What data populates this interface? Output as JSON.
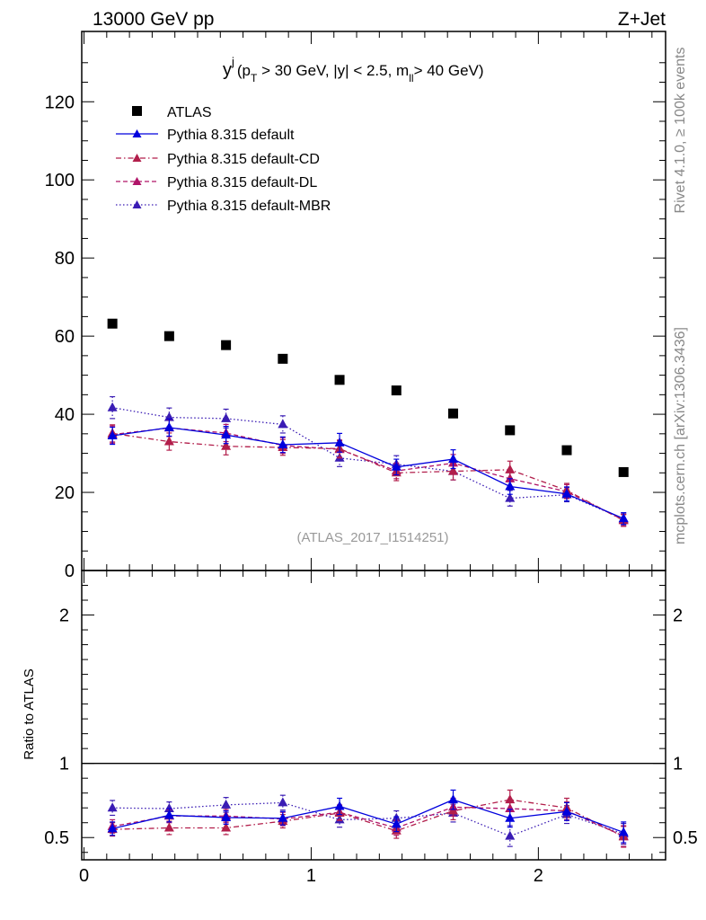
{
  "header": {
    "left": "13000 GeV pp",
    "right": "Z+Jet"
  },
  "side_labels": {
    "rivet": "Rivet 4.1.0, ≥ 100k events",
    "mcplots": "mcplots.cern.ch [arXiv:1306.3436]"
  },
  "chart_data": [
    {
      "type": "scatter",
      "title": "y^j (p_T > 30 GeV, |y| < 2.5, m_ll > 40 GeV)",
      "title_parts": {
        "y": "y",
        "j": "j",
        "open": "(p",
        "T": "T",
        "mid": " > 30 GeV, |y| < 2.5, m",
        "ll": "ll",
        "close": "> 40 GeV)"
      },
      "watermark": "(ATLAS_2017_I1514251)",
      "xlim": [
        -0.01,
        2.56
      ],
      "ylim": [
        0,
        138
      ],
      "yticks": [
        0,
        20,
        40,
        60,
        80,
        100,
        120
      ],
      "ytick_labels": [
        "0",
        "20",
        "40",
        "60",
        "80",
        "100",
        "120"
      ],
      "x": [
        0.125,
        0.375,
        0.625,
        0.875,
        1.125,
        1.375,
        1.625,
        1.875,
        2.125,
        2.375
      ],
      "series": [
        {
          "name": "ATLAS",
          "color": "#000000",
          "style": "marker-only",
          "values": [
            63.2,
            60.0,
            57.7,
            54.2,
            48.8,
            46.1,
            40.2,
            35.9,
            30.8,
            25.2
          ],
          "errors": [
            0.6,
            0.6,
            0.6,
            0.6,
            0.6,
            0.6,
            0.6,
            0.6,
            0.6,
            0.6
          ]
        },
        {
          "name": "Pythia 8.315 default",
          "color": "#0000dd",
          "style": "solid",
          "values": [
            34.5,
            36.6,
            34.7,
            32.2,
            32.7,
            26.5,
            28.5,
            21.5,
            19.6,
            13.3
          ],
          "errors": [
            2.2,
            2.2,
            2.2,
            2.0,
            2.4,
            2.0,
            2.4,
            2.0,
            1.8,
            1.5
          ]
        },
        {
          "name": "Pythia 8.315 default-CD",
          "color": "#b21e4b",
          "style": "dashdot",
          "values": [
            35.1,
            33.0,
            31.8,
            31.5,
            31.2,
            25.0,
            25.4,
            25.8,
            20.5,
            12.8
          ],
          "errors": [
            2.2,
            2.2,
            2.2,
            2.0,
            2.2,
            2.0,
            2.2,
            2.2,
            1.8,
            1.5
          ]
        },
        {
          "name": "Pythia 8.315 default-DL",
          "color": "#b01468",
          "style": "dashed",
          "values": [
            34.8,
            36.5,
            35.2,
            32.0,
            31.0,
            25.5,
            27.5,
            23.5,
            20.2,
            12.9
          ],
          "errors": [
            2.2,
            2.2,
            2.2,
            2.0,
            2.2,
            2.0,
            2.2,
            2.0,
            1.8,
            1.5
          ]
        },
        {
          "name": "Pythia 8.315 default-MBR",
          "color": "#3a1cb4",
          "style": "dotted",
          "values": [
            41.7,
            39.2,
            38.9,
            37.4,
            28.8,
            27.2,
            25.4,
            18.5,
            19.4,
            13.2
          ],
          "errors": [
            2.8,
            2.4,
            2.4,
            2.2,
            2.2,
            2.2,
            2.2,
            2.0,
            1.8,
            1.5
          ]
        }
      ],
      "legend_position": "top-left"
    },
    {
      "type": "scatter",
      "ylabel": "Ratio to ATLAS",
      "xlim": [
        -0.01,
        2.56
      ],
      "ylim": [
        0.35,
        2.3
      ],
      "yticks": [
        0.5,
        1,
        2
      ],
      "ytick_labels": [
        "0.5",
        "1",
        "2"
      ],
      "xticks": [
        0,
        1,
        2
      ],
      "xtick_labels": [
        "0",
        "1",
        "2"
      ],
      "x": [
        0.125,
        0.375,
        0.625,
        0.875,
        1.125,
        1.375,
        1.625,
        1.875,
        2.125,
        2.375
      ],
      "reference_line": 1,
      "series": [
        {
          "name": "Pythia 8.315 default",
          "values": [
            0.56,
            0.65,
            0.635,
            0.63,
            0.71,
            0.59,
            0.755,
            0.63,
            0.675,
            0.535
          ],
          "errors": [
            0.045,
            0.045,
            0.045,
            0.045,
            0.055,
            0.05,
            0.065,
            0.06,
            0.06,
            0.07
          ]
        },
        {
          "name": "Pythia 8.315 default-CD",
          "values": [
            0.555,
            0.565,
            0.565,
            0.61,
            0.665,
            0.545,
            0.68,
            0.755,
            0.7,
            0.505
          ],
          "errors": [
            0.045,
            0.045,
            0.045,
            0.045,
            0.05,
            0.05,
            0.06,
            0.065,
            0.065,
            0.07
          ]
        },
        {
          "name": "Pythia 8.315 default-DL",
          "values": [
            0.575,
            0.645,
            0.645,
            0.625,
            0.67,
            0.565,
            0.705,
            0.695,
            0.68,
            0.51
          ],
          "errors": [
            0.045,
            0.045,
            0.045,
            0.045,
            0.05,
            0.05,
            0.06,
            0.06,
            0.06,
            0.07
          ]
        },
        {
          "name": "Pythia 8.315 default-MBR",
          "values": [
            0.7,
            0.695,
            0.72,
            0.735,
            0.62,
            0.63,
            0.665,
            0.51,
            0.655,
            0.525
          ],
          "errors": [
            0.05,
            0.045,
            0.05,
            0.05,
            0.05,
            0.05,
            0.06,
            0.07,
            0.06,
            0.07
          ]
        }
      ]
    }
  ]
}
